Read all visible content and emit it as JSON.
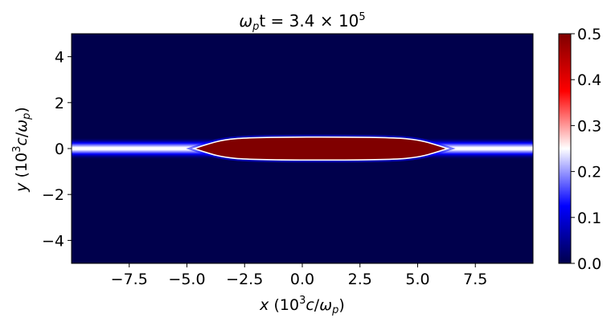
{
  "chart_data": {
    "type": "heatmap",
    "title": {
      "omega": "ω",
      "p": "p",
      "t_eq": "t = 3.4 × 10",
      "exp": "5"
    },
    "xlabel": {
      "var": "x",
      "open": " (10",
      "exp": "3",
      "c": "c",
      "slash": "/",
      "omega": "ω",
      "p": "p",
      "close": ")"
    },
    "ylabel": {
      "var": "y",
      "open": " (10",
      "exp": "3",
      "c": "c",
      "slash": "/",
      "omega": "ω",
      "p": "p",
      "close": ")"
    },
    "xlim": [
      -10,
      10
    ],
    "ylim": [
      -5,
      5
    ],
    "x_ticks": [
      -7.5,
      -5.0,
      -2.5,
      0.0,
      2.5,
      5.0,
      7.5
    ],
    "x_tick_labels": [
      "−7.5",
      "−5.0",
      "−2.5",
      "0.0",
      "2.5",
      "5.0",
      "7.5"
    ],
    "y_ticks": [
      4,
      2,
      0,
      -2,
      -4
    ],
    "y_tick_labels": [
      "4",
      "2",
      "0",
      "−2",
      "−4"
    ],
    "colorbar": {
      "min": 0.0,
      "max": 0.5,
      "ticks": [
        0.5,
        0.4,
        0.3,
        0.2,
        0.1,
        0.0
      ],
      "tick_labels": [
        "0.5",
        "0.4",
        "0.3",
        "0.2",
        "0.1",
        "0.0"
      ],
      "colormap": "seismic",
      "colors": {
        "low": "#00004c",
        "mid_low": "#0000ff",
        "mid": "#ffffff",
        "mid_high": "#ff0000",
        "high": "#800000"
      }
    },
    "background_value": 0.0,
    "features": [
      {
        "name": "central-slab",
        "x_range": [
          -4.7,
          6.3
        ],
        "y_center": 0.0,
        "max_half_thickness": 0.5,
        "value": 0.5
      },
      {
        "name": "thin-sheet",
        "x_range": [
          -10,
          10
        ],
        "y_center": 0.0,
        "half_thickness": 0.08,
        "value": 0.3
      }
    ],
    "grid": false
  }
}
